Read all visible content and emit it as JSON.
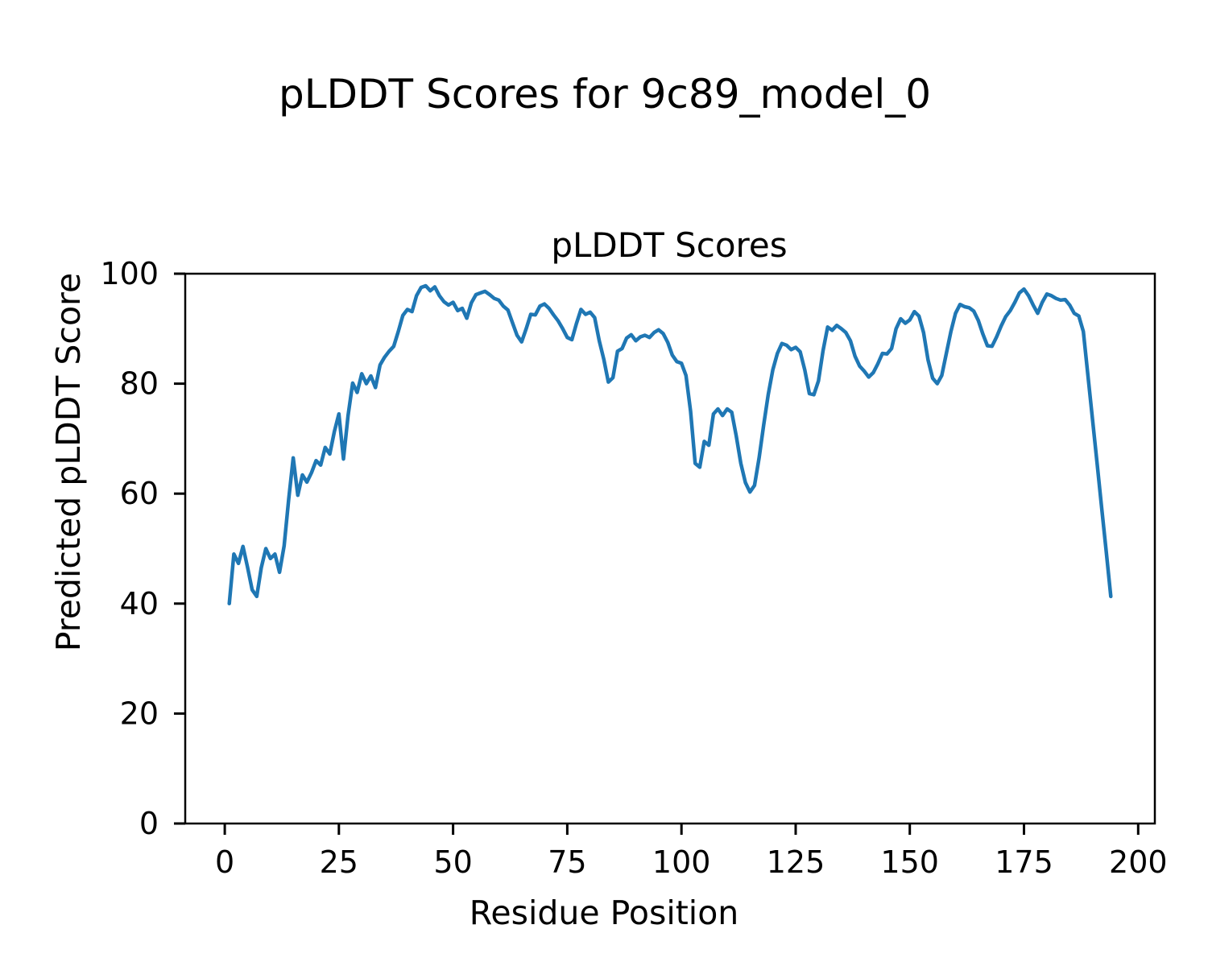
{
  "figure": {
    "suptitle": "pLDDT Scores for 9c89_model_0",
    "background_color": "#ffffff"
  },
  "chart_data": {
    "type": "line",
    "title": "pLDDT Scores",
    "xlabel": "Residue Position",
    "ylabel": "Predicted pLDDT Score",
    "series_name": "pLDDT",
    "x_start": 1,
    "values": [
      40.0,
      49.0,
      47.3,
      50.4,
      46.6,
      42.5,
      41.3,
      46.5,
      50.0,
      48.2,
      49.0,
      45.7,
      50.5,
      59.0,
      66.5,
      59.7,
      63.4,
      62.1,
      63.8,
      66.0,
      65.2,
      68.4,
      67.2,
      71.3,
      74.5,
      66.3,
      74.2,
      80.1,
      78.4,
      81.8,
      80.0,
      81.4,
      79.3,
      83.4,
      84.8,
      85.9,
      86.8,
      89.5,
      92.4,
      93.5,
      93.1,
      96.0,
      97.5,
      97.8,
      96.9,
      97.6,
      96.0,
      94.9,
      94.3,
      94.8,
      93.3,
      93.7,
      91.9,
      94.7,
      96.2,
      96.5,
      96.8,
      96.2,
      95.5,
      95.2,
      94.1,
      93.4,
      91.1,
      88.8,
      87.6,
      90.0,
      92.6,
      92.5,
      94.1,
      94.5,
      93.7,
      92.5,
      91.4,
      90.0,
      88.4,
      88.0,
      90.9,
      93.5,
      92.6,
      93.0,
      92.0,
      87.8,
      84.4,
      80.3,
      81.1,
      85.9,
      86.4,
      88.3,
      88.9,
      87.8,
      88.5,
      88.8,
      88.4,
      89.3,
      89.8,
      89.1,
      87.5,
      85.2,
      84.0,
      83.7,
      81.5,
      75.0,
      65.5,
      64.8,
      69.5,
      68.8,
      74.5,
      75.4,
      74.2,
      75.4,
      74.8,
      70.5,
      65.5,
      62.0,
      60.3,
      61.5,
      66.5,
      72.5,
      78.0,
      82.5,
      85.5,
      87.3,
      87.0,
      86.2,
      86.6,
      85.8,
      82.5,
      78.2,
      78.0,
      80.5,
      86.0,
      90.3,
      89.7,
      90.6,
      90.0,
      89.3,
      87.8,
      85.0,
      83.2,
      82.3,
      81.2,
      82.0,
      83.6,
      85.5,
      85.4,
      86.4,
      90.0,
      91.8,
      91.0,
      91.6,
      93.1,
      92.3,
      89.3,
      84.3,
      81.0,
      80.0,
      81.5,
      85.5,
      89.5,
      92.8,
      94.4,
      94.0,
      93.8,
      93.2,
      91.5,
      89.0,
      86.9,
      86.8,
      88.5,
      90.5,
      92.2,
      93.3,
      94.8,
      96.5,
      97.2,
      96.0,
      94.3,
      92.8,
      94.8,
      96.3,
      96.0,
      95.5,
      95.2,
      95.3,
      94.3,
      92.8,
      92.3,
      89.5,
      81.5,
      73.5,
      65.5,
      57.5,
      49.5,
      41.3
    ],
    "xlim": [
      -8.65,
      203.65
    ],
    "ylim": [
      0,
      100
    ],
    "xticks": [
      0,
      25,
      50,
      75,
      100,
      125,
      150,
      175,
      200
    ],
    "yticks": [
      0,
      20,
      40,
      60,
      80,
      100
    ],
    "grid": false,
    "legend": false,
    "line_color": "#1f77b4",
    "axis_color": "#000000"
  }
}
